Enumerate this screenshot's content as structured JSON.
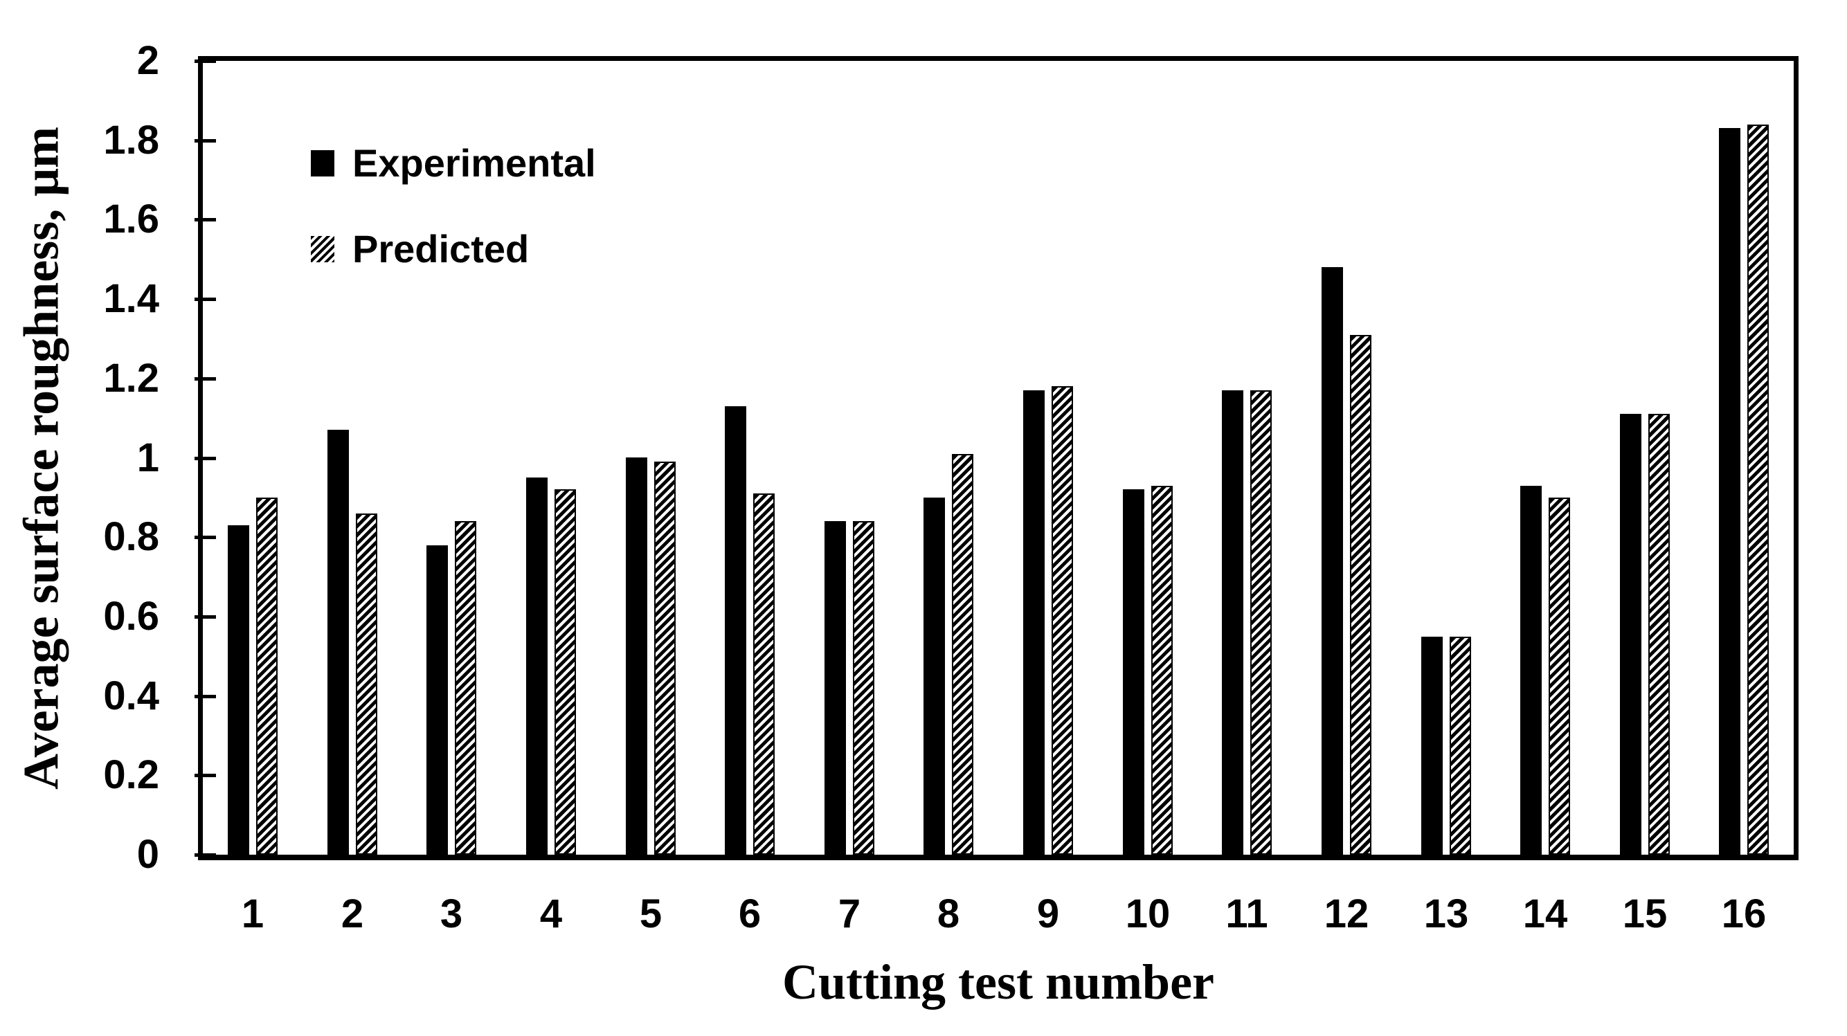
{
  "chart_data": {
    "type": "bar",
    "title": "",
    "xlabel": "Cutting test number",
    "ylabel": "Average surface roughness, μm",
    "categories": [
      "1",
      "2",
      "3",
      "4",
      "5",
      "6",
      "7",
      "8",
      "9",
      "10",
      "11",
      "12",
      "13",
      "14",
      "15",
      "16"
    ],
    "series": [
      {
        "name": "Experimental",
        "pattern": "solid-black",
        "values": [
          0.83,
          1.07,
          0.78,
          0.95,
          1.0,
          1.13,
          0.84,
          0.9,
          1.17,
          0.92,
          1.17,
          1.48,
          0.55,
          0.93,
          1.11,
          1.83
        ]
      },
      {
        "name": "Predicted",
        "pattern": "diagonal-hatch",
        "values": [
          0.9,
          0.86,
          0.84,
          0.92,
          0.99,
          0.91,
          0.84,
          1.01,
          1.18,
          0.93,
          1.17,
          1.31,
          0.55,
          0.9,
          1.11,
          1.84
        ]
      }
    ],
    "ylim": [
      0,
      2
    ],
    "ytick_step": 0.2,
    "ytick_labels": [
      "0",
      "0.2",
      "0.4",
      "0.6",
      "0.8",
      "1",
      "1.2",
      "1.4",
      "1.6",
      "1.8",
      "2"
    ],
    "grid": false,
    "legend_position": "inside-top-left",
    "colors": {
      "foreground": "#000000",
      "background": "#ffffff"
    }
  }
}
